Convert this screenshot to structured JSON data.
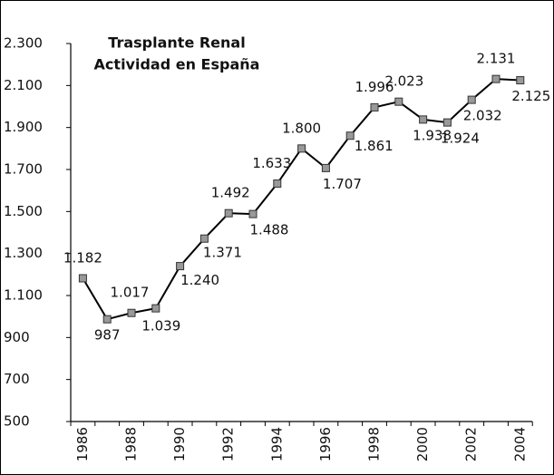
{
  "chart_data": {
    "type": "line",
    "title": [
      "Trasplante Renal",
      "Actividad en España"
    ],
    "categories": [
      "1986",
      null,
      "1988",
      null,
      "1990",
      null,
      "1992",
      null,
      "1994",
      null,
      "1996",
      null,
      "1998",
      null,
      "2000",
      null,
      "2002",
      null,
      "2004"
    ],
    "series": [
      {
        "color": "#000000",
        "marker_color": "#999999",
        "values": [
          1182,
          987,
          1017,
          1039,
          1240,
          1371,
          1492,
          1488,
          1633,
          1800,
          1707,
          1861,
          1996,
          2023,
          1938,
          1924,
          2032,
          2131,
          2125
        ],
        "value_labels": [
          "1.182",
          "987",
          "1.017",
          "1.039",
          "1.240",
          "1.371",
          "1.492",
          "1.488",
          "1.633",
          "1.800",
          "1.707",
          "1.861",
          "1.996",
          "2.023",
          "1.938",
          "1.924",
          "2.032",
          "2.131",
          "2.125"
        ]
      }
    ],
    "ylim": [
      500,
      2300
    ],
    "yticks": [
      500,
      700,
      900,
      {
        "value": 1100,
        "label": "1.100"
      },
      {
        "value": 1300,
        "label": "1.300"
      },
      {
        "value": 1500,
        "label": "1.500"
      },
      {
        "value": 1700,
        "label": "1.700"
      },
      {
        "value": 1900,
        "label": "1.900"
      },
      {
        "value": 2100,
        "label": "2.100"
      },
      {
        "value": 2300,
        "label": "2.300"
      }
    ],
    "grid": false
  }
}
